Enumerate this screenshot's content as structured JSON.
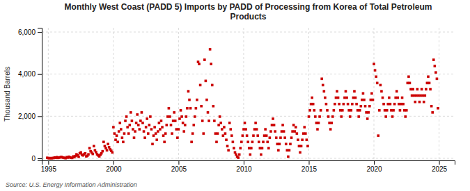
{
  "chart_data": {
    "type": "scatter",
    "title": "Monthly West Coast (PADD 5) Imports by PADD of Processing from Korea of Total Petroleum\nProducts",
    "ylabel": "Thousand Barrels",
    "source": "Source: U.S. Energy Information Administration",
    "color": "#cc0000",
    "marker": "square",
    "grid": true,
    "xlim": [
      1994.5,
      2026.2
    ],
    "ylim": [
      -100,
      6200
    ],
    "xticks": [
      1995,
      2000,
      2005,
      2010,
      2015,
      2020,
      2025
    ],
    "yticks": [
      0,
      {
        "value": 2000,
        "label": "2,000"
      },
      {
        "value": 4000,
        "label": "4,000"
      },
      {
        "value": 6000,
        "label": "6,000"
      }
    ],
    "x": [
      1994.917,
      1995.0,
      1995.083,
      1995.167,
      1995.25,
      1995.333,
      1995.417,
      1995.5,
      1995.583,
      1995.667,
      1995.75,
      1995.833,
      1995.917,
      1996.0,
      1996.083,
      1996.167,
      1996.25,
      1996.333,
      1996.417,
      1996.5,
      1996.583,
      1996.667,
      1996.75,
      1996.833,
      1996.917,
      1997.0,
      1997.083,
      1997.167,
      1997.25,
      1997.333,
      1997.417,
      1997.5,
      1997.583,
      1997.667,
      1997.75,
      1997.833,
      1997.917,
      1998.0,
      1998.083,
      1998.167,
      1998.25,
      1998.333,
      1998.417,
      1998.5,
      1998.583,
      1998.667,
      1998.75,
      1998.833,
      1998.917,
      1999.0,
      1999.083,
      1999.167,
      1999.25,
      1999.333,
      1999.417,
      1999.5,
      1999.583,
      1999.667,
      1999.75,
      1999.833,
      1999.917,
      2000.0,
      2000.083,
      2000.167,
      2000.25,
      2000.333,
      2000.417,
      2000.5,
      2000.583,
      2000.667,
      2000.75,
      2000.833,
      2000.917,
      2001.0,
      2001.083,
      2001.167,
      2001.25,
      2001.333,
      2001.417,
      2001.5,
      2001.583,
      2001.667,
      2001.75,
      2001.833,
      2001.917,
      2002.0,
      2002.083,
      2002.167,
      2002.25,
      2002.333,
      2002.417,
      2002.5,
      2002.583,
      2002.667,
      2002.75,
      2002.833,
      2002.917,
      2003.0,
      2003.083,
      2003.167,
      2003.25,
      2003.333,
      2003.417,
      2003.5,
      2003.583,
      2003.667,
      2003.75,
      2003.833,
      2003.917,
      2004.0,
      2004.083,
      2004.167,
      2004.25,
      2004.333,
      2004.417,
      2004.5,
      2004.583,
      2004.667,
      2004.75,
      2004.833,
      2004.917,
      2005.0,
      2005.083,
      2005.167,
      2005.25,
      2005.333,
      2005.417,
      2005.5,
      2005.583,
      2005.667,
      2005.75,
      2005.833,
      2005.917,
      2006.0,
      2006.083,
      2006.167,
      2006.25,
      2006.333,
      2006.417,
      2006.5,
      2006.583,
      2006.667,
      2006.75,
      2006.833,
      2006.917,
      2007.0,
      2007.083,
      2007.167,
      2007.25,
      2007.333,
      2007.417,
      2007.5,
      2007.583,
      2007.667,
      2007.75,
      2007.833,
      2007.917,
      2008.0,
      2008.083,
      2008.167,
      2008.25,
      2008.333,
      2008.417,
      2008.5,
      2008.583,
      2008.667,
      2008.75,
      2008.833,
      2008.917,
      2009.0,
      2009.083,
      2009.167,
      2009.25,
      2009.333,
      2009.417,
      2009.5,
      2009.583,
      2009.667,
      2009.75,
      2009.833,
      2009.917,
      2010.0,
      2010.083,
      2010.167,
      2010.25,
      2010.333,
      2010.417,
      2010.5,
      2010.583,
      2010.667,
      2010.75,
      2010.833,
      2010.917,
      2011.0,
      2011.083,
      2011.167,
      2011.25,
      2011.333,
      2011.417,
      2011.5,
      2011.583,
      2011.667,
      2011.75,
      2011.833,
      2011.917,
      2012.0,
      2012.083,
      2012.167,
      2012.25,
      2012.333,
      2012.417,
      2012.5,
      2012.583,
      2012.667,
      2012.75,
      2012.833,
      2012.917,
      2013.0,
      2013.083,
      2013.167,
      2013.25,
      2013.333,
      2013.417,
      2013.5,
      2013.583,
      2013.667,
      2013.75,
      2013.833,
      2013.917,
      2014.0,
      2014.083,
      2014.167,
      2014.25,
      2014.333,
      2014.417,
      2014.5,
      2014.583,
      2014.667,
      2014.75,
      2014.833,
      2014.917,
      2015.0,
      2015.083,
      2015.167,
      2015.25,
      2015.333,
      2015.417,
      2015.5,
      2015.583,
      2015.667,
      2015.75,
      2015.833,
      2015.917,
      2016.0,
      2016.083,
      2016.167,
      2016.25,
      2016.333,
      2016.417,
      2016.5,
      2016.583,
      2016.667,
      2016.75,
      2016.833,
      2016.917,
      2017.0,
      2017.083,
      2017.167,
      2017.25,
      2017.333,
      2017.417,
      2017.5,
      2017.583,
      2017.667,
      2017.75,
      2017.833,
      2017.917,
      2018.0,
      2018.083,
      2018.167,
      2018.25,
      2018.333,
      2018.417,
      2018.5,
      2018.583,
      2018.667,
      2018.75,
      2018.833,
      2018.917,
      2019.0,
      2019.083,
      2019.167,
      2019.25,
      2019.333,
      2019.417,
      2019.5,
      2019.583,
      2019.667,
      2019.75,
      2019.833,
      2019.917,
      2020.0,
      2020.083,
      2020.167,
      2020.25,
      2020.333,
      2020.417,
      2020.5,
      2020.583,
      2020.667,
      2020.75,
      2020.833,
      2020.917,
      2021.0,
      2021.083,
      2021.167,
      2021.25,
      2021.333,
      2021.417,
      2021.5,
      2021.583,
      2021.667,
      2021.75,
      2021.833,
      2021.917,
      2022.0,
      2022.083,
      2022.167,
      2022.25,
      2022.333,
      2022.417,
      2022.5,
      2022.583,
      2022.667,
      2022.75,
      2022.833,
      2022.917,
      2023.0,
      2023.083,
      2023.167,
      2023.25,
      2023.333,
      2023.417,
      2023.5,
      2023.583,
      2023.667,
      2023.75,
      2023.833,
      2023.917,
      2024.0,
      2024.083,
      2024.167,
      2024.25,
      2024.333,
      2024.417,
      2024.5,
      2024.583,
      2024.667,
      2024.75,
      2024.833,
      2024.917
    ],
    "values": [
      25,
      10,
      8,
      12,
      5,
      15,
      18,
      40,
      22,
      55,
      20,
      35,
      50,
      65,
      45,
      28,
      18,
      8,
      55,
      35,
      75,
      45,
      25,
      18,
      90,
      55,
      110,
      190,
      140,
      75,
      240,
      280,
      170,
      140,
      190,
      240,
      95,
      120,
      190,
      480,
      340,
      270,
      210,
      580,
      380,
      290,
      190,
      140,
      95,
      170,
      240,
      340,
      780,
      580,
      480,
      380,
      680,
      530,
      430,
      360,
      280,
      1480,
      1180,
      880,
      1080,
      780,
      1280,
      1680,
      1380,
      980,
      780,
      1180,
      1780,
      1980,
      1480,
      1180,
      1580,
      2180,
      1780,
      1380,
      980,
      1280,
      1680,
      2080,
      1580,
      1380,
      1780,
      2180,
      1680,
      1280,
      980,
      1480,
      1880,
      1180,
      1580,
      1980,
      1380,
      680,
      1080,
      1480,
      1180,
      880,
      1280,
      1680,
      1380,
      1780,
      1480,
      1080,
      780,
      1180,
      1580,
      1980,
      2380,
      1980,
      1580,
      1180,
      1780,
      2180,
      1780,
      1380,
      980,
      1380,
      1880,
      2280,
      1980,
      1680,
      1280,
      1580,
      1980,
      2380,
      3180,
      2780,
      2380,
      780,
      1180,
      1580,
      1980,
      2380,
      2780,
      4580,
      4480,
      3480,
      2480,
      1780,
      1180,
      4680,
      3680,
      2780,
      2180,
      1780,
      5180,
      4480,
      3480,
      2480,
      1780,
      1180,
      780,
      1180,
      1580,
      1980,
      1680,
      1380,
      1080,
      1480,
      1180,
      880,
      580,
      380,
      1680,
      1380,
      1080,
      780,
      480,
      280,
      180,
      80,
      30,
      180,
      480,
      780,
      1080,
      1380,
      1680,
      1380,
      1080,
      780,
      480,
      180,
      480,
      780,
      1080,
      1380,
      1680,
      1380,
      1080,
      780,
      480,
      180,
      480,
      780,
      1080,
      1380,
      1080,
      780,
      480,
      980,
      1280,
      1580,
      1880,
      1580,
      1280,
      980,
      680,
      380,
      680,
      980,
      1280,
      1580,
      1280,
      980,
      680,
      380,
      80,
      380,
      680,
      980,
      1280,
      1580,
      1280,
      1480,
      1180,
      880,
      580,
      280,
      580,
      880,
      1180,
      1480,
      1180,
      880,
      580,
      1980,
      2280,
      2580,
      2880,
      2580,
      2280,
      1980,
      1680,
      1380,
      1680,
      1980,
      2280,
      3780,
      3480,
      3180,
      2880,
      2580,
      2280,
      1980,
      1680,
      1380,
      1680,
      1980,
      2280,
      2580,
      2880,
      3180,
      2880,
      2580,
      2280,
      1980,
      2280,
      2580,
      2880,
      3180,
      2880,
      2580,
      2280,
      1980,
      2280,
      2580,
      2880,
      3180,
      2880,
      2580,
      2280,
      1980,
      2280,
      2480,
      2780,
      3080,
      2780,
      2480,
      2180,
      1880,
      2180,
      2480,
      2780,
      3080,
      2780,
      4480,
      4180,
      3880,
      3580,
      1080,
      2280,
      3480,
      3180,
      2880,
      2580,
      2280,
      1980,
      2280,
      2580,
      2880,
      2580,
      2280,
      1980,
      2280,
      2580,
      2880,
      3180,
      2880,
      2580,
      2280,
      2580,
      2880,
      2580,
      2280,
      1980,
      2280,
      3580,
      3880,
      3580,
      3280,
      2980,
      3280,
      2980,
      2680,
      2980,
      3280,
      2980,
      2680,
      2980,
      3280,
      2980,
      2680,
      2980,
      3280,
      3580,
      3880,
      3580,
      3280,
      2480,
      2180,
      4680,
      4380,
      4080,
      3780,
      2380
    ]
  }
}
